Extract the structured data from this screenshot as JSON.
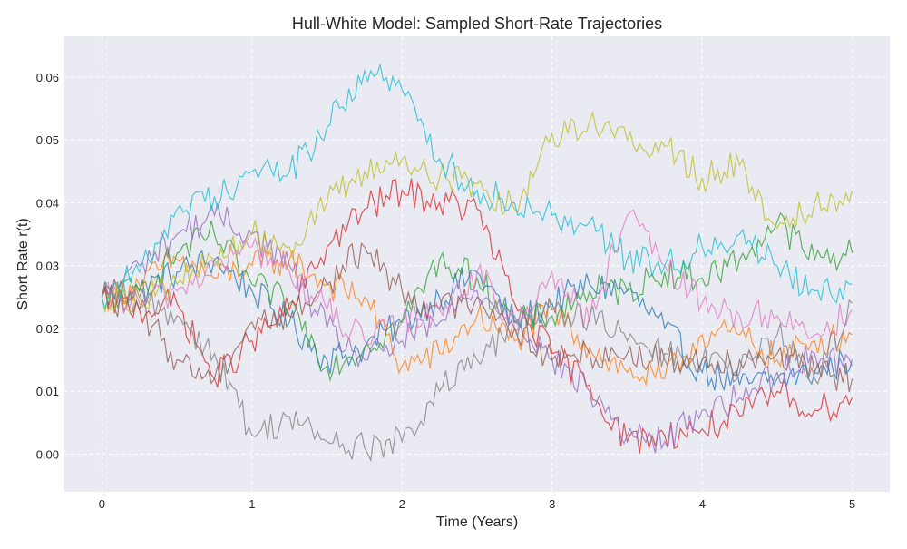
{
  "chart_data": {
    "type": "line",
    "title": "Hull-White Model: Sampled Short-Rate Trajectories",
    "xlabel": "Time (Years)",
    "ylabel": "Short Rate r(t)",
    "xlim": [
      -0.25,
      5.25
    ],
    "ylim": [
      -0.006,
      0.0665
    ],
    "xticks": [
      0,
      1,
      2,
      3,
      4,
      5
    ],
    "xtick_labels": [
      "0",
      "1",
      "2",
      "3",
      "4",
      "5"
    ],
    "yticks": [
      0.0,
      0.01,
      0.02,
      0.03,
      0.04,
      0.05,
      0.06
    ],
    "ytick_labels": [
      "0.00",
      "0.01",
      "0.02",
      "0.03",
      "0.04",
      "0.05",
      "0.06"
    ],
    "grid": true,
    "background": "#eaeaf2",
    "grid_color": "#ffffff",
    "series": [
      {
        "color": "#1f77b4",
        "x": [
          0,
          0.25,
          0.5,
          0.75,
          1,
          1.25,
          1.5,
          1.75,
          2,
          2.25,
          2.5,
          2.75,
          3,
          3.25,
          3.5,
          3.75,
          4,
          4.25,
          4.5,
          4.75,
          5
        ],
        "values": [
          0.025,
          0.026,
          0.029,
          0.031,
          0.026,
          0.021,
          0.015,
          0.017,
          0.021,
          0.025,
          0.029,
          0.021,
          0.024,
          0.027,
          0.026,
          0.02,
          0.013,
          0.011,
          0.012,
          0.013,
          0.015
        ]
      },
      {
        "color": "#ff7f0e",
        "x": [
          0,
          0.25,
          0.5,
          0.75,
          1,
          1.25,
          1.5,
          1.75,
          2,
          2.25,
          2.5,
          2.75,
          3,
          3.25,
          3.5,
          3.75,
          4,
          4.25,
          4.5,
          4.75,
          5
        ],
        "values": [
          0.025,
          0.027,
          0.031,
          0.028,
          0.03,
          0.031,
          0.027,
          0.025,
          0.014,
          0.016,
          0.022,
          0.018,
          0.023,
          0.017,
          0.013,
          0.012,
          0.019,
          0.019,
          0.015,
          0.018,
          0.019
        ]
      },
      {
        "color": "#2ca02c",
        "x": [
          0,
          0.25,
          0.5,
          0.75,
          1,
          1.25,
          1.5,
          1.75,
          2,
          2.25,
          2.5,
          2.75,
          3,
          3.25,
          3.5,
          3.75,
          4,
          4.25,
          4.5,
          4.75,
          5
        ],
        "values": [
          0.025,
          0.026,
          0.032,
          0.035,
          0.027,
          0.024,
          0.014,
          0.017,
          0.021,
          0.031,
          0.028,
          0.021,
          0.022,
          0.026,
          0.026,
          0.029,
          0.028,
          0.031,
          0.037,
          0.031,
          0.032
        ]
      },
      {
        "color": "#d62728",
        "x": [
          0,
          0.25,
          0.5,
          0.75,
          1,
          1.25,
          1.5,
          1.75,
          2,
          2.25,
          2.5,
          2.75,
          3,
          3.25,
          3.5,
          3.75,
          4,
          4.25,
          4.5,
          4.75,
          5
        ],
        "values": [
          0.025,
          0.023,
          0.024,
          0.012,
          0.018,
          0.023,
          0.033,
          0.039,
          0.042,
          0.04,
          0.039,
          0.024,
          0.016,
          0.011,
          0.002,
          0.003,
          0.004,
          0.006,
          0.01,
          0.007,
          0.009
        ]
      },
      {
        "color": "#9467bd",
        "x": [
          0,
          0.25,
          0.5,
          0.75,
          1,
          1.25,
          1.5,
          1.75,
          2,
          2.25,
          2.5,
          2.75,
          3,
          3.25,
          3.5,
          3.75,
          4,
          4.25,
          4.5,
          4.75,
          5
        ],
        "values": [
          0.025,
          0.03,
          0.035,
          0.038,
          0.035,
          0.03,
          0.02,
          0.015,
          0.018,
          0.021,
          0.026,
          0.022,
          0.015,
          0.01,
          0.003,
          0.002,
          0.007,
          0.009,
          0.013,
          0.016,
          0.014
        ]
      },
      {
        "color": "#8c564b",
        "x": [
          0,
          0.25,
          0.5,
          0.75,
          1,
          1.25,
          1.5,
          1.75,
          2,
          2.25,
          2.5,
          2.75,
          3,
          3.25,
          3.5,
          3.75,
          4,
          4.25,
          4.5,
          4.75,
          5
        ],
        "values": [
          0.025,
          0.023,
          0.015,
          0.012,
          0.021,
          0.022,
          0.027,
          0.033,
          0.026,
          0.023,
          0.025,
          0.02,
          0.015,
          0.016,
          0.016,
          0.015,
          0.015,
          0.015,
          0.016,
          0.013,
          0.012
        ]
      },
      {
        "color": "#e377c2",
        "x": [
          0,
          0.25,
          0.5,
          0.75,
          1,
          1.25,
          1.5,
          1.75,
          2,
          2.25,
          2.5,
          2.75,
          3,
          3.25,
          3.5,
          3.75,
          4,
          4.25,
          4.5,
          4.75,
          5
        ],
        "values": [
          0.025,
          0.024,
          0.026,
          0.03,
          0.033,
          0.029,
          0.023,
          0.018,
          0.021,
          0.023,
          0.029,
          0.02,
          0.029,
          0.021,
          0.038,
          0.03,
          0.024,
          0.022,
          0.022,
          0.019,
          0.023
        ]
      },
      {
        "color": "#7f7f7f",
        "x": [
          0,
          0.25,
          0.5,
          0.75,
          1,
          1.25,
          1.5,
          1.75,
          2,
          2.25,
          2.5,
          2.75,
          3,
          3.25,
          3.5,
          3.75,
          4,
          4.25,
          4.5,
          4.75,
          5
        ],
        "values": [
          0.025,
          0.025,
          0.022,
          0.016,
          0.003,
          0.006,
          0.002,
          0.001,
          0.002,
          0.01,
          0.015,
          0.02,
          0.023,
          0.022,
          0.018,
          0.016,
          0.015,
          0.013,
          0.019,
          0.012,
          0.024
        ]
      },
      {
        "color": "#bcbd22",
        "x": [
          0,
          0.25,
          0.5,
          0.75,
          1,
          1.25,
          1.5,
          1.75,
          2,
          2.25,
          2.5,
          2.75,
          3,
          3.25,
          3.5,
          3.75,
          4,
          4.25,
          4.5,
          4.75,
          5
        ],
        "values": [
          0.025,
          0.025,
          0.027,
          0.031,
          0.035,
          0.033,
          0.04,
          0.045,
          0.047,
          0.044,
          0.043,
          0.039,
          0.051,
          0.053,
          0.05,
          0.049,
          0.044,
          0.046,
          0.036,
          0.04,
          0.042
        ]
      },
      {
        "color": "#17becf",
        "x": [
          0,
          0.25,
          0.5,
          0.75,
          1,
          1.25,
          1.5,
          1.75,
          2,
          2.25,
          2.5,
          2.75,
          3,
          3.25,
          3.5,
          3.75,
          4,
          4.25,
          4.5,
          4.75,
          5
        ],
        "values": [
          0.025,
          0.029,
          0.039,
          0.041,
          0.045,
          0.045,
          0.052,
          0.061,
          0.058,
          0.047,
          0.042,
          0.04,
          0.038,
          0.037,
          0.031,
          0.03,
          0.033,
          0.035,
          0.03,
          0.026,
          0.027
        ]
      }
    ]
  }
}
